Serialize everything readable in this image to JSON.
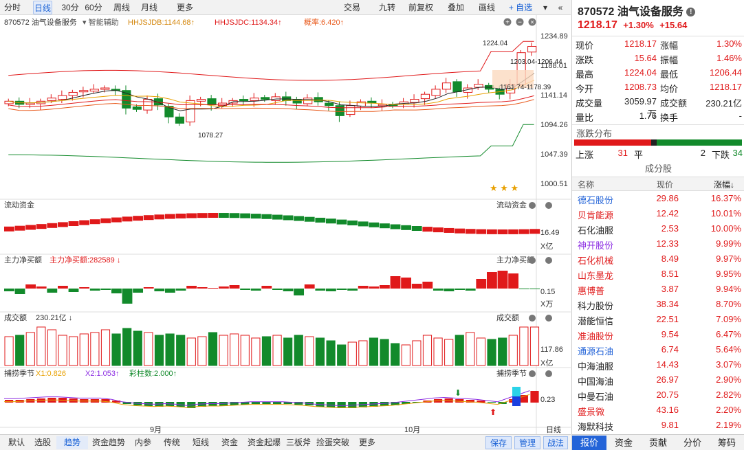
{
  "toolbar": {
    "items": [
      "分时",
      "日线",
      "30分",
      "60分",
      "周线",
      "月线",
      "更多"
    ],
    "right": [
      "交易",
      "九转",
      "前复权",
      "叠加",
      "画线",
      "+ 自选"
    ]
  },
  "chart": {
    "title": "870572 油气设备服务",
    "helper": "智能辅助",
    "legend": [
      {
        "text": "HHJSJDB:1144.68",
        "color": "#d4860b",
        "arrow": "↑"
      },
      {
        "text": "HHJSJDC:1134.34",
        "color": "#e0191a",
        "arrow": "↑"
      },
      {
        "text": "概率:6.420",
        "color": "#e8581a",
        "arrow": "↑"
      }
    ],
    "price_axis": [
      "1234.89",
      "1188.01",
      "1141.14",
      "1094.26",
      "1047.39",
      "1000.51"
    ],
    "annotations": [
      "1224.04",
      "1203.04-1206.44",
      "1161.74-1178.39",
      "1078.27"
    ],
    "stars": "★ ★ ★",
    "panels": [
      {
        "label": "流动资金",
        "rlabel": "流动资金",
        "axis": "16.49",
        "unit": "X亿"
      },
      {
        "label": "主力净买额",
        "sub": "主力净买额:282589",
        "rlabel": "主力净买额",
        "axis": "0.15",
        "unit": "X万"
      },
      {
        "label": "成交额",
        "sub": "230.21亿",
        "rlabel": "成交额",
        "axis": "117.86",
        "unit": "X亿"
      },
      {
        "label": "捕捞季节",
        "sub": "X1:0.826",
        "sub2": "X2:1.053",
        "sub3": "彩柱数:2.000",
        "rlabel": "捕捞季节",
        "axis": "0.23"
      }
    ],
    "months": [
      "9月",
      "10月"
    ],
    "period": "日线"
  },
  "bottom_tabs": [
    "默认",
    "选股",
    "趋势",
    "资金趋势",
    "内参",
    "传统",
    "短线",
    "资金",
    "资金起爆",
    "三板斧",
    "捡蛋突破",
    "更多"
  ],
  "bottom_right": [
    "保存",
    "管理",
    "战法"
  ],
  "quote": {
    "code_name": "870572 油气设备服务",
    "price": "1218.17",
    "pct": "+1.30%",
    "chg": "+15.64",
    "rows": [
      [
        "现价",
        "1218.17",
        "涨幅",
        "1.30%"
      ],
      [
        "涨跌",
        "15.64",
        "振幅",
        "1.46%"
      ],
      [
        "最高",
        "1224.04",
        "最低",
        "1206.44"
      ],
      [
        "今开",
        "1208.73",
        "均价",
        "1218.17"
      ],
      [
        "成交量",
        "3059.97万",
        "成交额",
        "230.21亿"
      ],
      [
        "量比",
        "1.76",
        "换手",
        "-"
      ]
    ],
    "dist_title": "涨跌分布",
    "up_label": "上涨",
    "up": "31",
    "flat_label": "平",
    "flat": "2",
    "down_label": "下跌",
    "down": "34",
    "comp_title": "成分股",
    "cols": [
      "名称",
      "现价",
      "涨幅↓"
    ],
    "stocks": [
      {
        "name": "德石股份",
        "price": "29.86",
        "pct": "16.37%",
        "color": "#2464d8"
      },
      {
        "name": "贝肯能源",
        "price": "12.42",
        "pct": "10.01%",
        "color": "#e0191a"
      },
      {
        "name": "石化油服",
        "price": "2.53",
        "pct": "10.00%",
        "color": "#222"
      },
      {
        "name": "神开股份",
        "price": "12.33",
        "pct": "9.99%",
        "color": "#8b2be2"
      },
      {
        "name": "石化机械",
        "price": "8.49",
        "pct": "9.97%",
        "color": "#e0191a"
      },
      {
        "name": "山东墨龙",
        "price": "8.51",
        "pct": "9.95%",
        "color": "#e0191a"
      },
      {
        "name": "惠博普",
        "price": "3.87",
        "pct": "9.94%",
        "color": "#e0191a"
      },
      {
        "name": "科力股份",
        "price": "38.34",
        "pct": "8.70%",
        "color": "#222"
      },
      {
        "name": "潜能恒信",
        "price": "22.51",
        "pct": "7.09%",
        "color": "#222"
      },
      {
        "name": "准油股份",
        "price": "9.54",
        "pct": "6.47%",
        "color": "#e0191a"
      },
      {
        "name": "通源石油",
        "price": "6.74",
        "pct": "5.64%",
        "color": "#2464d8"
      },
      {
        "name": "中海油服",
        "price": "14.43",
        "pct": "3.07%",
        "color": "#222"
      },
      {
        "name": "中国海油",
        "price": "26.97",
        "pct": "2.90%",
        "color": "#222"
      },
      {
        "name": "中曼石油",
        "price": "20.75",
        "pct": "2.82%",
        "color": "#222"
      },
      {
        "name": "盛景微",
        "price": "43.16",
        "pct": "2.20%",
        "color": "#e0191a"
      },
      {
        "name": "海默科技",
        "price": "9.81",
        "pct": "2.19%",
        "color": "#222"
      }
    ],
    "tabs": [
      "报价",
      "资金",
      "贡献",
      "分价",
      "筹码"
    ]
  }
}
